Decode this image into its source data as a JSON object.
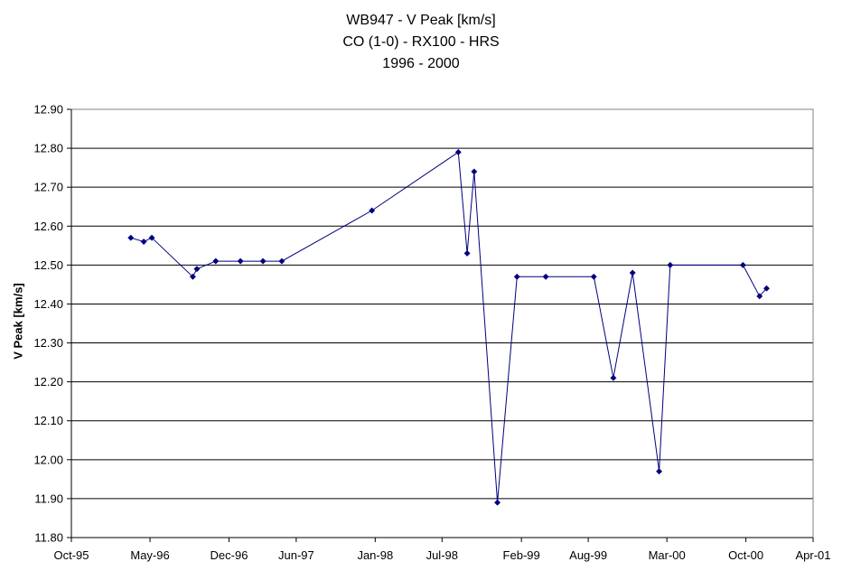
{
  "chart_data": {
    "type": "line",
    "title": [
      "WB947 - V Peak [km/s]",
      "CO (1-0) - RX100 - HRS",
      "1996 - 2000"
    ],
    "xlabel": "",
    "ylabel": "V Peak [km/s]",
    "ylim": [
      11.8,
      12.9
    ],
    "y_ticks": [
      "12.90",
      "12.80",
      "12.70",
      "12.60",
      "12.50",
      "12.40",
      "12.30",
      "12.20",
      "12.10",
      "12.00",
      "11.90",
      "11.80"
    ],
    "xlim": [
      "1995-10-01",
      "2001-04-01"
    ],
    "x_ticks": [
      {
        "date": "1995-10-01",
        "label": "Oct-95"
      },
      {
        "date": "1996-05-01",
        "label": "May-96"
      },
      {
        "date": "1996-12-01",
        "label": "Dec-96"
      },
      {
        "date": "1997-06-01",
        "label": "Jun-97"
      },
      {
        "date": "1998-01-01",
        "label": "Jan-98"
      },
      {
        "date": "1998-07-01",
        "label": "Jul-98"
      },
      {
        "date": "1999-02-01",
        "label": "Feb-99"
      },
      {
        "date": "1999-08-01",
        "label": "Aug-99"
      },
      {
        "date": "2000-03-01",
        "label": "Mar-00"
      },
      {
        "date": "2000-10-01",
        "label": "Oct-00"
      },
      {
        "date": "2001-04-01",
        "label": "Apr-01"
      }
    ],
    "grid": "horizontal",
    "line_color": "#000080",
    "series": [
      {
        "points": [
          {
            "x": "1996-03-10",
            "y": 12.57
          },
          {
            "x": "1996-04-14",
            "y": 12.56
          },
          {
            "x": "1996-05-06",
            "y": 12.57
          },
          {
            "x": "1996-08-25",
            "y": 12.47
          },
          {
            "x": "1996-09-05",
            "y": 12.49
          },
          {
            "x": "1996-10-26",
            "y": 12.51
          },
          {
            "x": "1997-01-01",
            "y": 12.51
          },
          {
            "x": "1997-03-03",
            "y": 12.51
          },
          {
            "x": "1997-04-23",
            "y": 12.51
          },
          {
            "x": "1997-12-23",
            "y": 12.64
          },
          {
            "x": "1998-08-14",
            "y": 12.79
          },
          {
            "x": "1998-09-07",
            "y": 12.53
          },
          {
            "x": "1998-09-26",
            "y": 12.74
          },
          {
            "x": "1998-11-28",
            "y": 11.89
          },
          {
            "x": "1999-01-20",
            "y": 12.47
          },
          {
            "x": "1999-04-08",
            "y": 12.47
          },
          {
            "x": "1999-08-16",
            "y": 12.47
          },
          {
            "x": "1999-10-08",
            "y": 12.21
          },
          {
            "x": "1999-11-29",
            "y": 12.48
          },
          {
            "x": "2000-02-09",
            "y": 11.97
          },
          {
            "x": "2000-03-10",
            "y": 12.5
          },
          {
            "x": "2000-09-23",
            "y": 12.5
          },
          {
            "x": "2000-11-07",
            "y": 12.42
          },
          {
            "x": "2000-11-26",
            "y": 12.44
          }
        ]
      }
    ]
  }
}
